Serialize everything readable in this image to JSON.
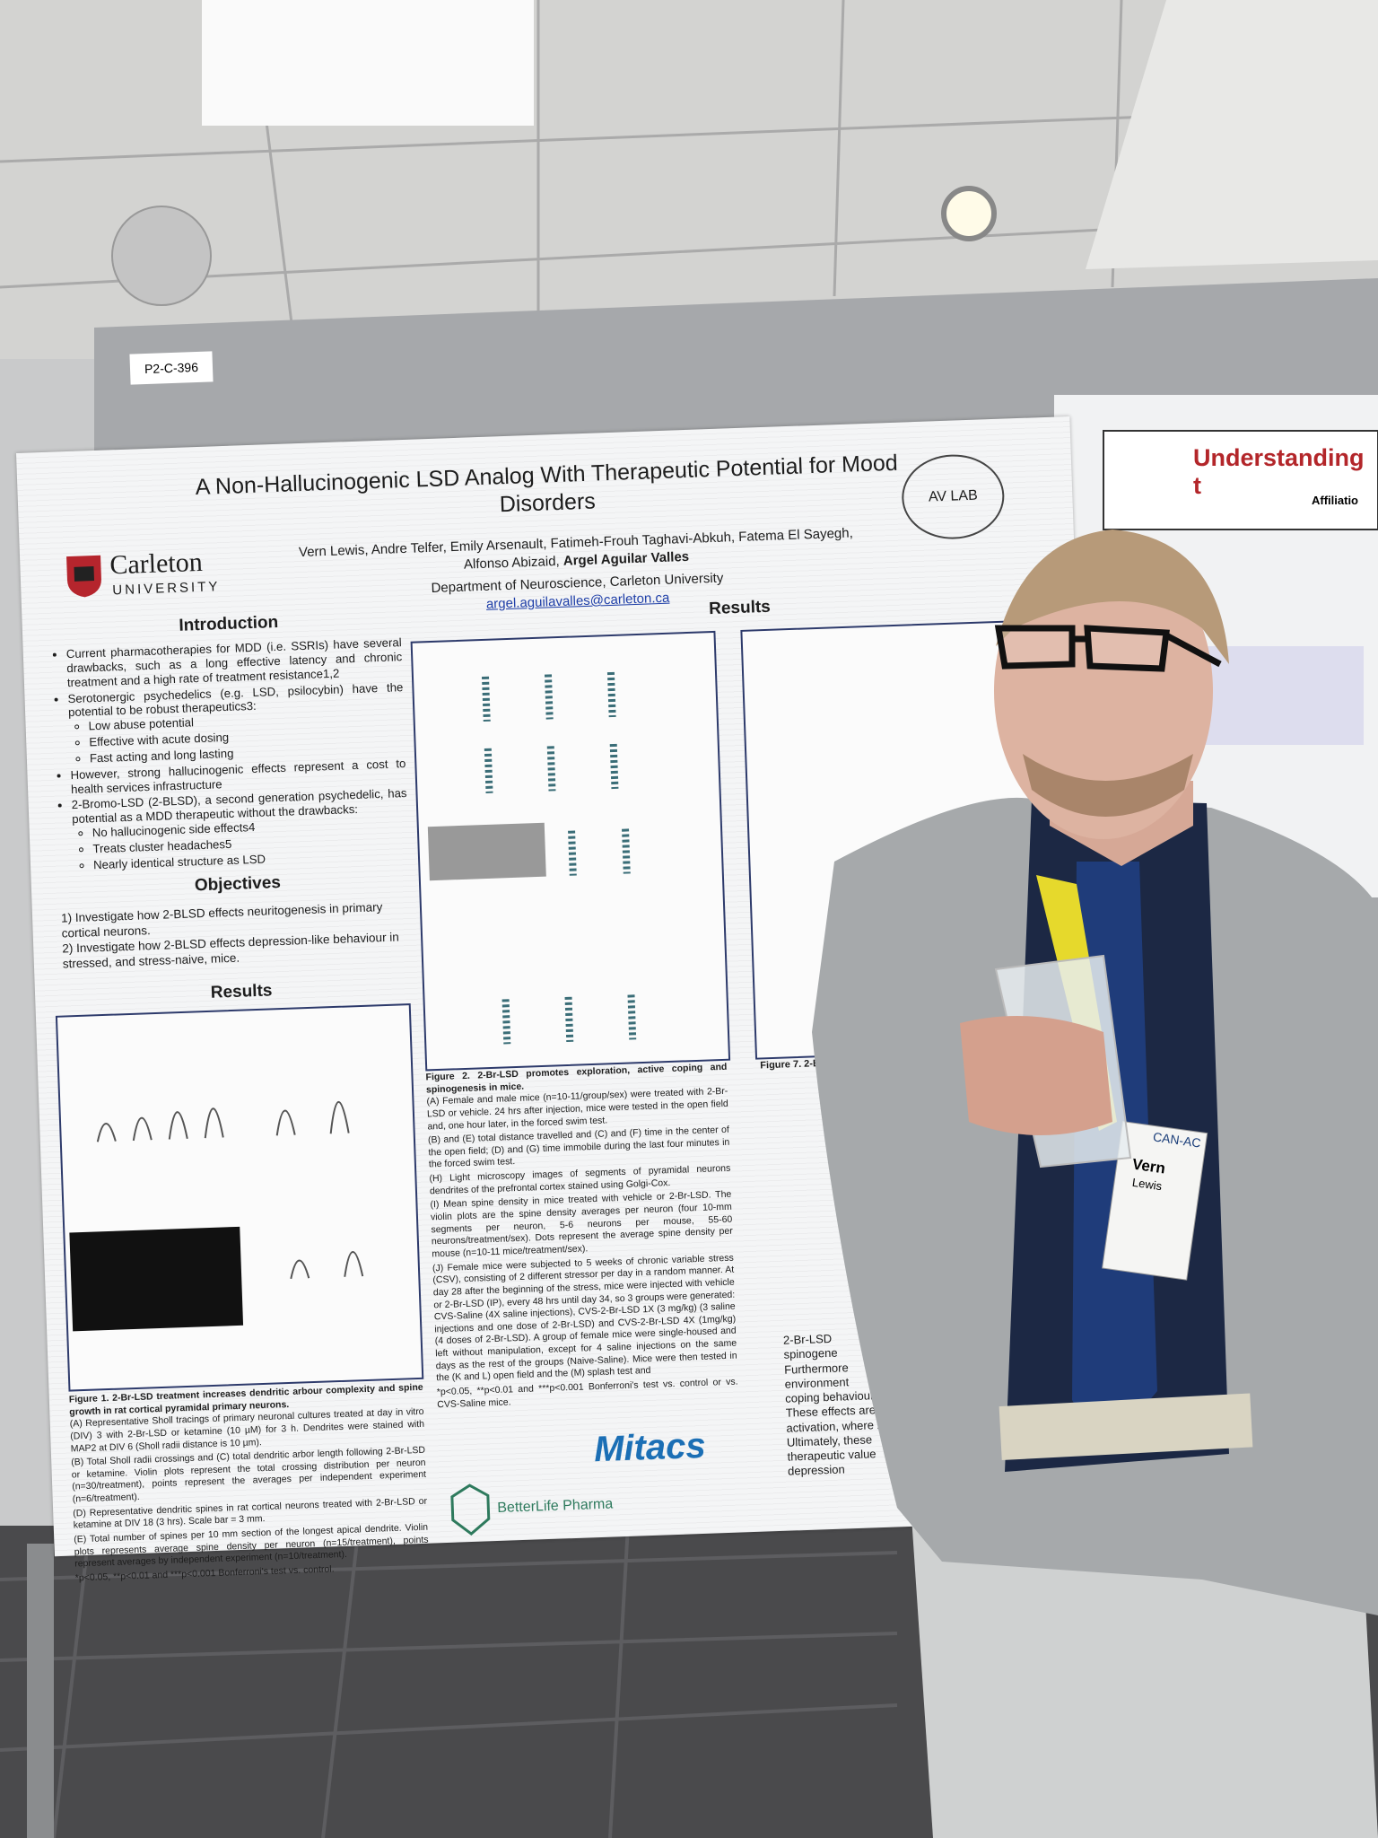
{
  "board_label": "P2-C-396",
  "poster": {
    "title": "A Non-Hallucinogenic LSD Analog With Therapeutic Potential for Mood Disorders",
    "university_name": "Carleton",
    "university_word": "UNIVERSITY",
    "lab_logo": "AV LAB",
    "authors": "Vern Lewis, Andre Telfer, Emily Arsenault, Fatimeh-Frouh Taghavi-Abkuh, Fatema El Sayegh, Alfonso Abizaid,",
    "authors_bold": "Argel Aguilar Valles",
    "department": "Department of Neuroscience, Carleton University",
    "email": "argel.aguilavalles@carleton.ca",
    "intro_heading": "Introduction",
    "intro_items": [
      {
        "text": "Current pharmacotherapies for MDD (i.e. SSRIs) have several drawbacks, such as a long effective latency and chronic treatment and a high rate of treatment resistance1,2",
        "sub": []
      },
      {
        "text": "Serotonergic psychedelics (e.g. LSD, psilocybin) have the potential to be robust therapeutics3:",
        "sub": [
          "Low abuse potential",
          "Effective with acute dosing",
          "Fast acting and long lasting"
        ]
      },
      {
        "text": "However, strong hallucinogenic effects represent a cost to health services infrastructure",
        "sub": []
      },
      {
        "text": "2-Bromo-LSD (2-BLSD), a second generation psychedelic, has potential as a MDD therapeutic without the drawbacks:",
        "sub": [
          "No hallucinogenic side effects4",
          "Treats cluster headaches5",
          "Nearly identical structure as LSD"
        ]
      }
    ],
    "objectives_heading": "Objectives",
    "objectives": [
      "1) Investigate how 2-BLSD effects neuritogenesis in primary cortical neurons.",
      "2) Investigate how 2-BLSD effects depression-like behaviour in stressed, and stress-naive, mice."
    ],
    "results_heading_left": "Results",
    "results_heading_middle": "Results",
    "figure1_title": "Figure 1. 2-Br-LSD treatment increases dendritic arbour complexity and spine growth in rat cortical pyramidal primary neurons.",
    "figure1_lines": [
      "(A) Representative Sholl tracings of primary neuronal cultures treated at day in vitro (DIV) 3 with 2-Br-LSD or ketamine (10 µM) for 3 h. Dendrites were stained with MAP2 at DIV 6 (Sholl radii distance is 10 µm).",
      "(B) Total Sholl radii crossings and (C) total dendritic arbor length following 2-Br-LSD or ketamine. Violin plots represent the total crossing distribution per neuron (n=30/treatment), points represent the averages per independent experiment (n=6/treatment).",
      "(D) Representative dendritic spines in rat cortical neurons treated with 2-Br-LSD or ketamine at DIV 18 (3 hrs). Scale bar = 3 mm.",
      "(E) Total number of spines per 10 mm section of the longest apical dendrite. Violin plots represents average spine density per neuron (n=15/treatment), points represent averages by independent experiment (n=10/treatment).",
      "*p<0.05, **p<0.01 and ***p<0.001 Bonferroni's test vs. control."
    ],
    "figure2_title": "Figure 2. 2-Br-LSD promotes exploration, active coping and spinogenesis in mice.",
    "figure2_lines": [
      "(A) Female and male mice (n=10-11/group/sex) were treated with 2-Br-LSD or vehicle. 24 hrs after injection, mice were tested in the open field and, one hour later, in the forced swim test.",
      "(B) and (E) total distance travelled and (C) and (F) time in the center of the open field; (D) and (G) time immobile during the last four minutes in the forced swim test.",
      "(H) Light microscopy images of segments of pyramidal neurons dendrites of the prefrontal cortex stained using Golgi-Cox.",
      "(I) Mean spine density in mice treated with vehicle or 2-Br-LSD. The violin plots are the spine density averages per neuron (four 10-mm segments per neuron, 5-6 neurons per mouse, 55-60 neurons/treatment/sex). Dots represent the average spine density per mouse (n=10-11 mice/treatment/sex).",
      "(J) Female mice were subjected to 5 weeks of chronic variable stress (CSV), consisting of 2 different stressor per day in a random manner. At day 28 after the beginning of the stress, mice were injected with vehicle or 2-Br-LSD (IP), every 48 hrs until day 34, so 3 groups were generated: CVS-Saline (4X saline injections), CVS-2-Br-LSD 1X (3 mg/kg) (3 saline injections and one dose of 2-Br-LSD) and CVS-2-Br-LSD 4X (1mg/kg) (4 doses of 2-Br-LSD). A group of female mice were single-housed and left without manipulation, except for 4 saline injections on the same days as the rest of the groups (Naive-Saline). Mice were then tested in the (K and L) open field and the (M) splash test and",
      "*p<0.05, **p<0.01 and ***p<0.001 Bonferroni's test vs. control or vs. CVS-Saline mice."
    ],
    "figure7_title": "Figure 7. 2-Br-LSD mech",
    "conclusions": [
      "2-Br-LSD",
      "spinogene",
      "Furthermore",
      "environment",
      "coping behaviour.",
      "These effects are",
      "activation, where 2-",
      "Ultimately, these",
      "therapeutic value",
      "depression"
    ],
    "sponsors": [
      "Mitacs",
      "BetterLife Pharma"
    ]
  },
  "right_poster": {
    "title": "Understanding t",
    "affiliation": "Affiliatio"
  },
  "badge": {
    "event": "CAN-AC",
    "first": "Vern",
    "last": "Lewis"
  }
}
